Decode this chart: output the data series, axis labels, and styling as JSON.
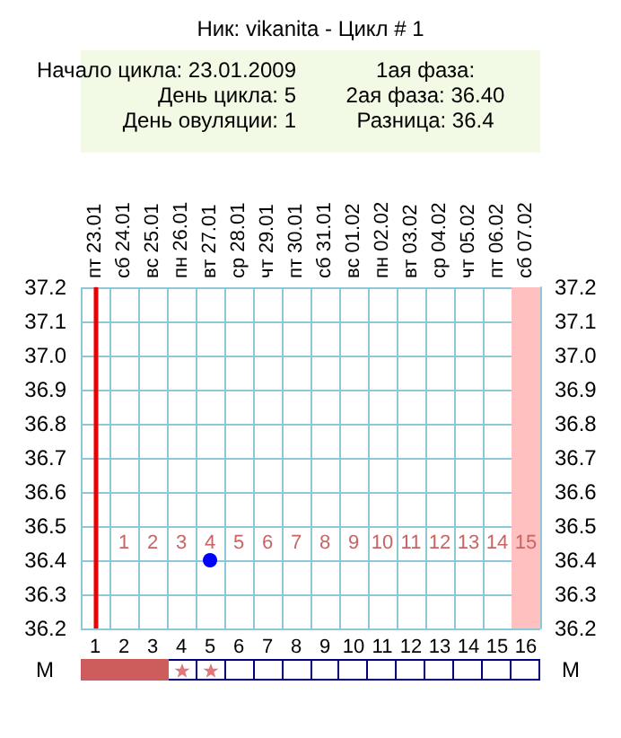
{
  "chart_data": {
    "type": "scatter",
    "title": "Ник: vikanita - Цикл # 1",
    "annotations": [
      "Начало цикла: 23.01.2009",
      "День цикла: 5",
      "День овуляции: 1",
      "1ая фаза:",
      "2ая фаза: 36.40",
      "Разница: 36.4",
      "M",
      "M",
      "пт 23.01",
      "сб 24.01",
      "вс 25.01",
      "пн 26.01",
      "вт 27.01",
      "ср 28.01",
      "чт 29.01",
      "пт 30.01",
      "сб 31.01",
      "вс 01.02",
      "пн 02.02",
      "вт 03.02",
      "ср 04.02",
      "чт 05.02",
      "пт 06.02",
      "сб 07.02"
    ],
    "x2lim": [
      -0.5,
      15.5
    ],
    "x2ticks": [
      1,
      2,
      3,
      4,
      5,
      6,
      7,
      8,
      9,
      10,
      11,
      12,
      13,
      14,
      15
    ],
    "x": [
      5
    ],
    "values": [
      36.4
    ],
    "color": "#0000ff",
    "marker": "circle",
    "xlim": [
      0.5,
      16.5
    ],
    "xticks": [
      1,
      2,
      3,
      4,
      5,
      6,
      7,
      8,
      9,
      10,
      11,
      12,
      13,
      14,
      15,
      16
    ],
    "ylim": [
      36.2,
      37.2
    ],
    "yticks": [
      36.2,
      36.3,
      36.4,
      36.5,
      36.6,
      36.7,
      36.8,
      36.9,
      {
        "value": 37,
        "label": "37.0"
      },
      37.1,
      37.2
    ],
    "y2lim": [
      36.2,
      37.2
    ],
    "y2ticks": [
      36.2,
      36.3,
      36.4,
      36.5,
      36.6,
      36.7,
      36.8,
      36.9,
      {
        "value": 37,
        "label": "37.0"
      },
      37.1,
      37.2
    ],
    "ref_lines": [
      {
        "axis": "x",
        "value": 1,
        "label": null,
        "color": "#ee0000"
      }
    ],
    "bands": [
      {
        "axis": "x",
        "from": 15.5,
        "to": 16.5,
        "label": null,
        "color": "#ffc0c0"
      }
    ],
    "grid": true
  }
}
